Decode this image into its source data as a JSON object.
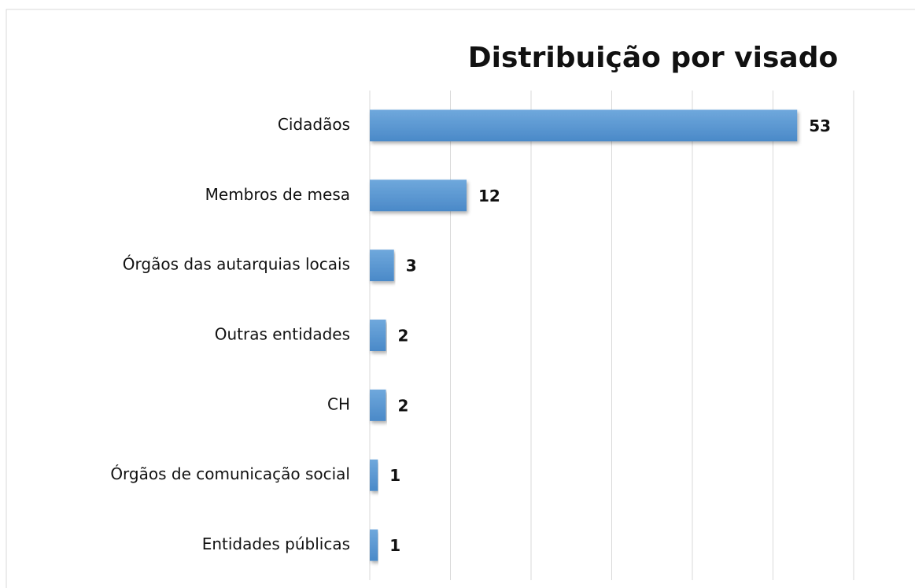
{
  "chart_data": {
    "type": "bar",
    "orientation": "horizontal",
    "title": "Distribuição por visado",
    "categories": [
      "Cidadãos",
      "Membros de mesa",
      "Órgãos das autarquias locais",
      "Outras entidades",
      "CH",
      "Órgãos de comunicação social",
      "Entidades públicas"
    ],
    "values": [
      53,
      12,
      3,
      2,
      2,
      1,
      1
    ],
    "color": "#5b9bd5",
    "xlim": [
      0,
      60
    ],
    "xticks": [
      0,
      10,
      20,
      30,
      40,
      50,
      60
    ],
    "grid": true
  }
}
